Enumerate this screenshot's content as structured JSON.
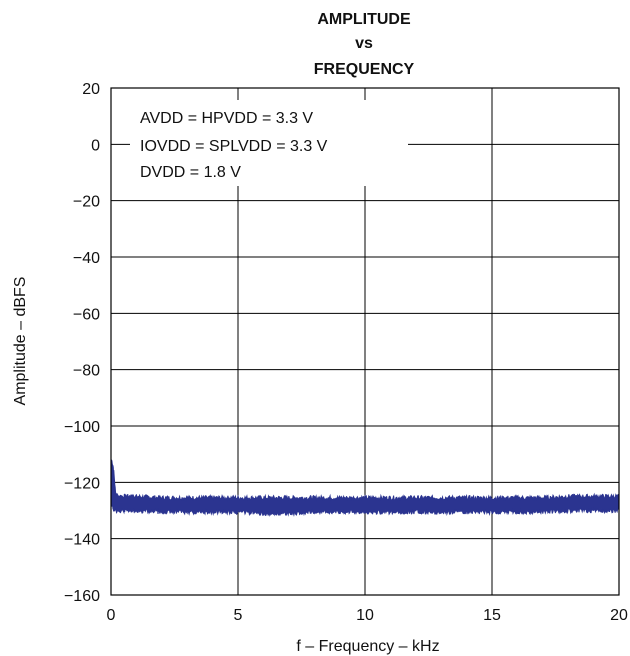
{
  "chart_data": {
    "type": "line",
    "title_lines": [
      "AMPLITUDE",
      "vs",
      "FREQUENCY"
    ],
    "xlabel": "f – Frequency – kHz",
    "ylabel": "Amplitude – dBFS",
    "xlim": [
      0,
      20
    ],
    "ylim": [
      -160,
      20
    ],
    "x_ticks": [
      0,
      5,
      10,
      15,
      20
    ],
    "x_tick_labels": [
      "0",
      "5",
      "10",
      "15",
      "20"
    ],
    "y_ticks": [
      20,
      0,
      -20,
      -40,
      -60,
      -80,
      -100,
      -120,
      -140,
      -160
    ],
    "y_tick_labels": [
      "20",
      "0",
      "−20",
      "−40",
      "−60",
      "−80",
      "−100",
      "−120",
      "−140",
      "−160"
    ],
    "grid": true,
    "annotations": [
      "AVDD = HPVDD = 3.3 V",
      "IOVDD = SPLVDD = 3.3 V",
      "DVDD = 1.8 V"
    ],
    "series_color": "#2b3490",
    "series": [
      {
        "noise_band": true,
        "x": [
          0.02,
          0.08,
          0.12,
          0.18,
          0.25,
          0.5,
          1,
          2,
          3,
          4,
          5,
          6,
          7,
          8,
          9,
          10,
          11,
          12,
          13,
          14,
          15,
          16,
          17,
          18,
          19,
          20
        ],
        "y_max": [
          -112,
          -114,
          -117,
          -124,
          -124.5,
          -125,
          -125,
          -125.5,
          -125.5,
          -125.5,
          -125.5,
          -125.5,
          -125.5,
          -125.5,
          -125.5,
          -125.5,
          -125.5,
          -125.5,
          -125.5,
          -125.5,
          -125.5,
          -125.5,
          -125.5,
          -125,
          -125,
          -125
        ],
        "y_min": [
          -128,
          -129,
          -129.5,
          -130,
          -130,
          -130,
          -130,
          -130.5,
          -130.5,
          -130.5,
          -130.5,
          -131,
          -131,
          -130.5,
          -130.5,
          -130.5,
          -130.5,
          -130.5,
          -130.5,
          -130.5,
          -130.5,
          -130.5,
          -130.5,
          -130,
          -130,
          -130
        ]
      }
    ]
  }
}
